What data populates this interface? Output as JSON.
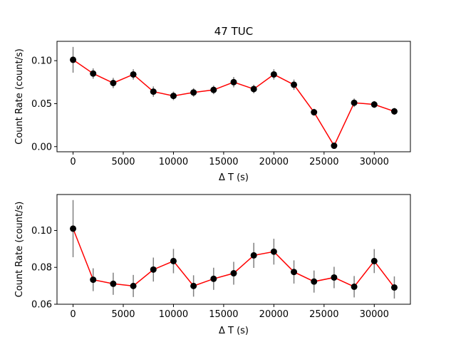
{
  "chart_data": [
    {
      "type": "line",
      "title": "47 TUC",
      "xlabel": "Δ T (s)",
      "ylabel": "Count Rate (count/s)",
      "xlim": [
        -1600,
        33600
      ],
      "ylim": [
        -0.006,
        0.1225
      ],
      "xticks": [
        0,
        5000,
        10000,
        15000,
        20000,
        25000,
        30000
      ],
      "xtick_labels": [
        "0",
        "5000",
        "10000",
        "15000",
        "20000",
        "25000",
        "30000"
      ],
      "yticks": [
        0.0,
        0.05,
        0.1
      ],
      "ytick_labels": [
        "0.00",
        "0.05",
        "0.10"
      ],
      "line_color": "#ff0000",
      "marker_color": "#000000",
      "errorbar_color": "#808080",
      "x": [
        0,
        2000,
        4000,
        6000,
        8000,
        10000,
        12000,
        14000,
        16000,
        18000,
        20000,
        22000,
        24000,
        26000,
        28000,
        30000,
        32000
      ],
      "y": [
        0.101,
        0.085,
        0.074,
        0.084,
        0.064,
        0.059,
        0.063,
        0.066,
        0.075,
        0.067,
        0.084,
        0.072,
        0.04,
        0.001,
        0.051,
        0.049,
        0.041
      ],
      "yerr": [
        0.015,
        0.006,
        0.006,
        0.006,
        0.006,
        0.005,
        0.005,
        0.005,
        0.006,
        0.005,
        0.006,
        0.006,
        0.004,
        0.001,
        0.005,
        0.004,
        0.004
      ]
    },
    {
      "type": "line",
      "title": "",
      "xlabel": "Δ T (s)",
      "ylabel": "Count Rate (count/s)",
      "xlim": [
        -1600,
        33600
      ],
      "ylim": [
        0.06,
        0.1195
      ],
      "xticks": [
        0,
        5000,
        10000,
        15000,
        20000,
        25000,
        30000
      ],
      "xtick_labels": [
        "0",
        "5000",
        "10000",
        "15000",
        "20000",
        "25000",
        "30000"
      ],
      "yticks": [
        0.06,
        0.08,
        0.1
      ],
      "ytick_labels": [
        "0.06",
        "0.08",
        "0.10"
      ],
      "line_color": "#ff0000",
      "marker_color": "#000000",
      "errorbar_color": "#808080",
      "x": [
        0,
        2000,
        4000,
        6000,
        8000,
        10000,
        12000,
        14000,
        16000,
        18000,
        20000,
        22000,
        24000,
        26000,
        28000,
        30000,
        32000
      ],
      "y": [
        0.101,
        0.0733,
        0.0711,
        0.0699,
        0.0788,
        0.0834,
        0.0699,
        0.0738,
        0.0768,
        0.0865,
        0.0885,
        0.0775,
        0.0723,
        0.0745,
        0.0695,
        0.0834,
        0.0691
      ],
      "yerr": [
        0.0155,
        0.0062,
        0.006,
        0.006,
        0.0065,
        0.0066,
        0.0058,
        0.006,
        0.0062,
        0.0068,
        0.007,
        0.0063,
        0.006,
        0.0058,
        0.0058,
        0.0065,
        0.006
      ]
    }
  ]
}
